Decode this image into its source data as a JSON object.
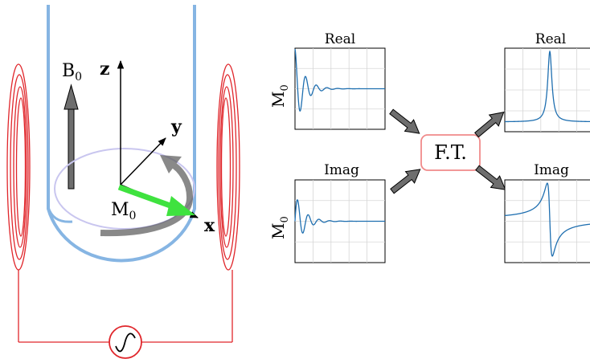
{
  "labels": {
    "b0": "B",
    "b0_sub": "0",
    "z_axis": "z",
    "y_axis": "y",
    "x_axis": "x",
    "m0": "M",
    "m0_sub": "0",
    "ft": "F.T."
  },
  "plots": {
    "time_real": {
      "title": "Real",
      "ylabel": "M",
      "ylabel_sub": "0"
    },
    "time_imag": {
      "title": "Imag",
      "ylabel": "M",
      "ylabel_sub": "0"
    },
    "spec_real": {
      "title": "Real"
    },
    "spec_imag": {
      "title": "Imag"
    }
  },
  "colors": {
    "coil": "#e0262b",
    "tube": "#86b5e3",
    "arrow_gray": "#6e6e6e",
    "m0_vector": "#3fe23f",
    "precession_circle": "#c9c6ef",
    "signal": "#1f6fb0",
    "ft_box": "#f08a8a",
    "grid": "#d6d6d6"
  },
  "icons": {
    "source": "ac-source-icon"
  }
}
